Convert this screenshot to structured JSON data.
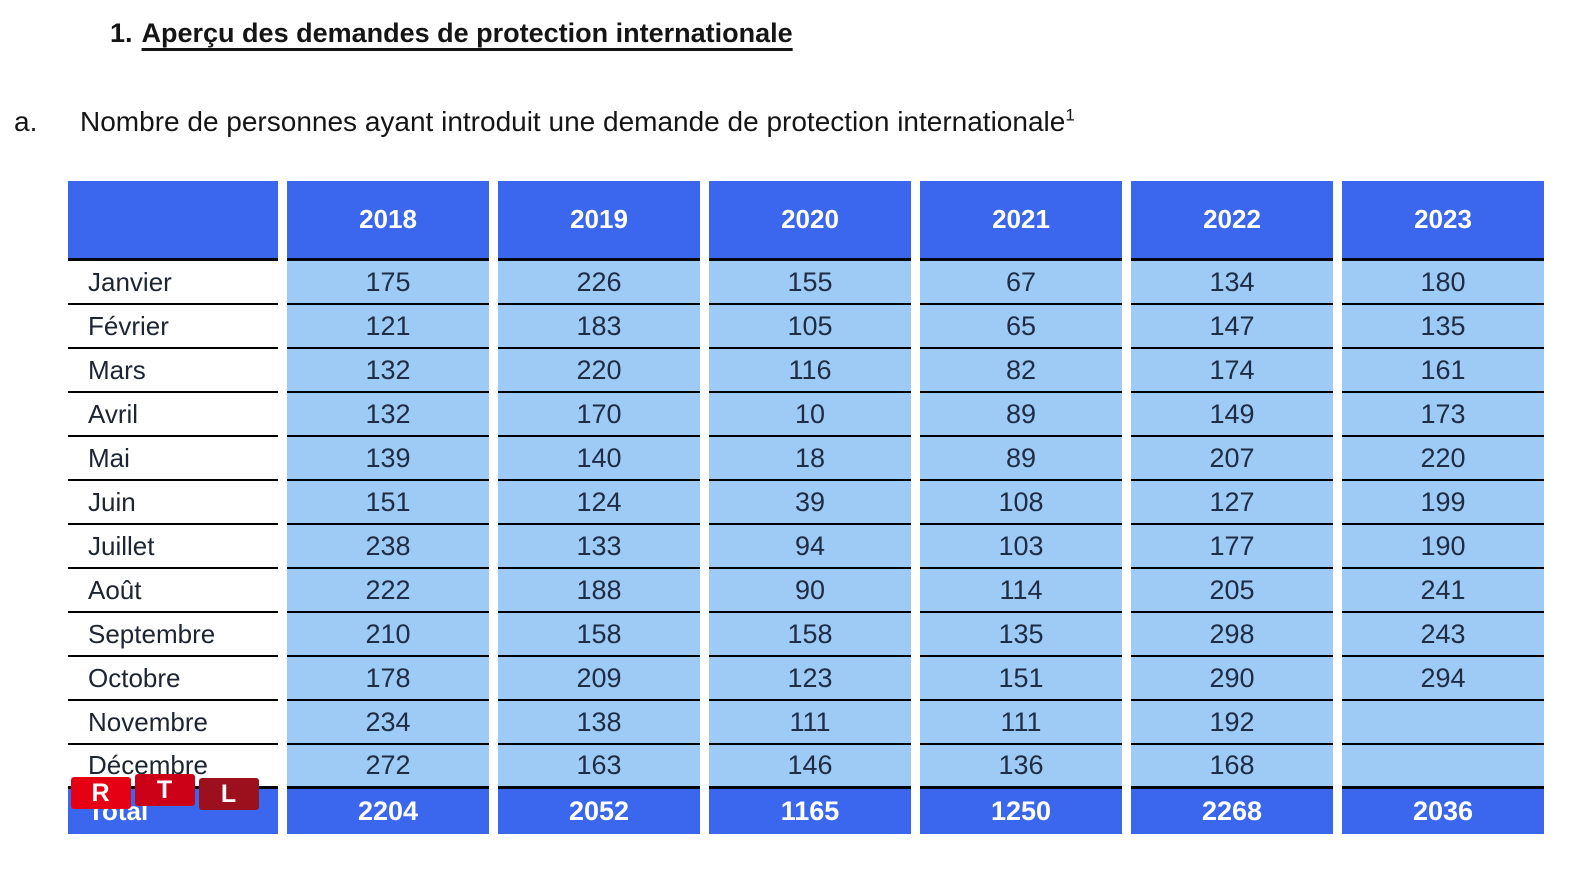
{
  "document": {
    "heading": {
      "number": "1.",
      "text": "Aperçu des demandes de protection internationale"
    },
    "subtitle": {
      "letter": "a.",
      "text": "Nombre de personnes ayant introduit une demande de protection internationale",
      "footnote_marker": "1"
    }
  },
  "table": {
    "year_headers": [
      "2018",
      "2019",
      "2020",
      "2021",
      "2022",
      "2023"
    ],
    "rows": [
      {
        "month": "Janvier",
        "values": [
          "175",
          "226",
          "155",
          "67",
          "134",
          "180"
        ]
      },
      {
        "month": "Février",
        "values": [
          "121",
          "183",
          "105",
          "65",
          "147",
          "135"
        ]
      },
      {
        "month": "Mars",
        "values": [
          "132",
          "220",
          "116",
          "82",
          "174",
          "161"
        ]
      },
      {
        "month": "Avril",
        "values": [
          "132",
          "170",
          "10",
          "89",
          "149",
          "173"
        ]
      },
      {
        "month": "Mai",
        "values": [
          "139",
          "140",
          "18",
          "89",
          "207",
          "220"
        ]
      },
      {
        "month": "Juin",
        "values": [
          "151",
          "124",
          "39",
          "108",
          "127",
          "199"
        ]
      },
      {
        "month": "Juillet",
        "values": [
          "238",
          "133",
          "94",
          "103",
          "177",
          "190"
        ]
      },
      {
        "month": "Août",
        "values": [
          "222",
          "188",
          "90",
          "114",
          "205",
          "241"
        ]
      },
      {
        "month": "Septembre",
        "values": [
          "210",
          "158",
          "158",
          "135",
          "298",
          "243"
        ]
      },
      {
        "month": "Octobre",
        "values": [
          "178",
          "209",
          "123",
          "151",
          "290",
          "294"
        ]
      },
      {
        "month": "Novembre",
        "values": [
          "234",
          "138",
          "111",
          "111",
          "192",
          ""
        ]
      },
      {
        "month": "Décembre",
        "values": [
          "272",
          "163",
          "146",
          "136",
          "168",
          ""
        ]
      }
    ],
    "total": {
      "label": "Total",
      "values": [
        "2204",
        "2052",
        "1165",
        "1250",
        "2268",
        "2036"
      ]
    }
  },
  "watermark": {
    "letters": [
      "R",
      "T",
      "L"
    ],
    "colors": [
      "#e60014",
      "#cc0017",
      "#9c101e"
    ]
  },
  "colors": {
    "header_blue": "#3a67ee",
    "cell_blue": "#9ecaf6",
    "line_dark": "#05070f"
  }
}
